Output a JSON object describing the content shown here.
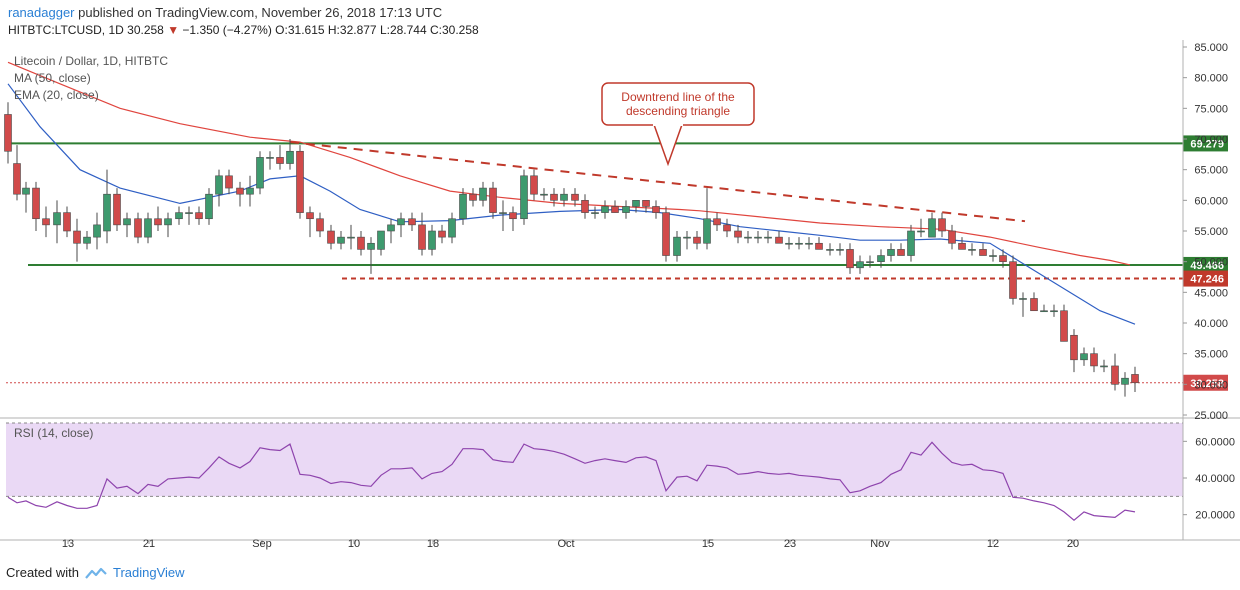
{
  "publish": {
    "author": "ranadagger",
    "rest": " published on TradingView.com, November 26, 2018 17:13 UTC"
  },
  "ohlc": {
    "symbol": "HITBTC:LTCUSD, 1D",
    "last": "30.258",
    "arrow": "▼",
    "change": "−1.350 (−4.27%)",
    "o": "O:31.615",
    "h": "H:32.877",
    "l": "L:28.744",
    "c": "C:30.258"
  },
  "legend": {
    "title": "Litecoin / Dollar, 1D, HITBTC",
    "ma": "MA (50, close)",
    "ema": "EMA (20, close)",
    "rsi": "RSI (14, close)"
  },
  "annotation": "Downtrend line of the descending triangle",
  "footer": {
    "created_with": "Created with",
    "brand": "TradingView"
  },
  "colors": {
    "up": "#3e9a6e",
    "down": "#d14a4a",
    "ma": "#e0453e",
    "ema": "#2f5fc4",
    "support": "#2e7d32",
    "rsi": "#8e44ad",
    "rsi_band": "#ead9f5"
  },
  "chart_data": [
    {
      "type": "candlestick",
      "title": "Litecoin / Dollar, 1D, HITBTC",
      "x_ticks": [
        "13",
        "21",
        "Sep",
        "10",
        "18",
        "Oct",
        "15",
        "23",
        "Nov",
        "12",
        "20"
      ],
      "y_ticks": [
        "85.000",
        "80.000",
        "75.000",
        "70.000",
        "65.000",
        "60.000",
        "55.000",
        "50.000",
        "45.000",
        "40.000",
        "35.000",
        "30.000",
        "25.000"
      ],
      "ylim": [
        25,
        85
      ],
      "candles": [
        [
          8,
          74,
          76,
          66,
          68
        ],
        [
          17,
          66,
          69,
          60,
          61
        ],
        [
          26,
          61,
          63,
          58,
          62
        ],
        [
          36,
          62,
          63,
          55,
          57
        ],
        [
          46,
          57,
          59,
          54,
          56
        ],
        [
          57,
          56,
          60,
          53,
          58
        ],
        [
          67,
          58,
          59,
          54,
          55
        ],
        [
          77,
          55,
          57,
          50,
          53
        ],
        [
          87,
          53,
          55,
          52,
          54
        ],
        [
          97,
          54,
          58,
          52,
          56
        ],
        [
          107,
          55,
          65,
          53,
          61
        ],
        [
          117,
          61,
          62,
          55,
          56
        ],
        [
          127,
          56,
          58,
          54,
          57
        ],
        [
          138,
          57,
          58,
          53,
          54
        ],
        [
          148,
          54,
          58,
          53,
          57
        ],
        [
          158,
          57,
          59,
          55,
          56
        ],
        [
          168,
          56,
          58,
          54,
          57
        ],
        [
          179,
          57,
          59,
          56,
          58
        ],
        [
          189,
          58,
          59,
          56,
          58
        ],
        [
          199,
          58,
          59,
          56,
          57
        ],
        [
          209,
          57,
          62,
          56,
          61
        ],
        [
          219,
          61,
          65,
          59,
          64
        ],
        [
          229,
          64,
          65,
          61,
          62
        ],
        [
          240,
          62,
          63,
          59,
          61
        ],
        [
          250,
          61,
          64,
          59,
          62
        ],
        [
          260,
          62,
          68,
          61,
          67
        ],
        [
          270,
          67,
          68,
          65,
          67
        ],
        [
          280,
          67,
          69,
          65,
          66
        ],
        [
          290,
          66,
          70,
          65,
          68
        ],
        [
          300,
          68,
          69,
          57,
          58
        ],
        [
          310,
          58,
          59,
          54,
          57
        ],
        [
          320,
          57,
          58,
          54,
          55
        ],
        [
          331,
          55,
          56,
          52,
          53
        ],
        [
          341,
          53,
          55,
          52,
          54
        ],
        [
          351,
          54,
          56,
          52,
          54
        ],
        [
          361,
          54,
          55,
          51,
          52
        ],
        [
          371,
          52,
          54,
          48,
          53
        ],
        [
          381,
          52,
          55,
          51,
          55
        ],
        [
          391,
          55,
          57,
          53,
          56
        ],
        [
          401,
          56,
          58,
          54,
          57
        ],
        [
          412,
          57,
          58,
          55,
          56
        ],
        [
          422,
          56,
          58,
          51,
          52
        ],
        [
          432,
          52,
          56,
          51,
          55
        ],
        [
          442,
          55,
          56,
          53,
          54
        ],
        [
          452,
          54,
          58,
          53,
          57
        ],
        [
          463,
          57,
          62,
          56,
          61
        ],
        [
          473,
          61,
          62,
          59,
          60
        ],
        [
          483,
          60,
          63,
          59,
          62
        ],
        [
          493,
          62,
          63,
          57,
          58
        ],
        [
          503,
          58,
          60,
          55,
          58
        ],
        [
          513,
          58,
          59,
          55,
          57
        ],
        [
          524,
          57,
          65,
          56,
          64
        ],
        [
          534,
          64,
          65,
          60,
          61
        ],
        [
          544,
          61,
          62,
          60,
          61
        ],
        [
          554,
          61,
          62,
          59,
          60
        ],
        [
          564,
          60,
          62,
          59,
          61
        ],
        [
          575,
          61,
          62,
          59,
          60
        ],
        [
          585,
          60,
          61,
          57,
          58
        ],
        [
          595,
          58,
          59,
          57,
          58
        ],
        [
          605,
          58,
          60,
          57,
          59
        ],
        [
          615,
          59,
          60,
          58,
          58
        ],
        [
          626,
          58,
          60,
          57,
          59
        ],
        [
          636,
          59,
          60,
          58,
          60
        ],
        [
          646,
          60,
          60,
          58,
          59
        ],
        [
          656,
          59,
          60,
          57,
          58
        ],
        [
          666,
          58,
          59,
          50,
          51
        ],
        [
          677,
          51,
          55,
          50,
          54
        ],
        [
          687,
          54,
          55,
          52,
          54
        ],
        [
          697,
          54,
          55,
          52,
          53
        ],
        [
          707,
          53,
          62,
          52,
          57
        ],
        [
          717,
          57,
          58,
          55,
          56
        ],
        [
          727,
          56,
          57,
          54,
          55
        ],
        [
          738,
          55,
          56,
          53,
          54
        ],
        [
          748,
          54,
          55,
          53,
          54
        ],
        [
          758,
          54,
          55,
          53,
          54
        ],
        [
          768,
          54,
          55,
          53,
          54
        ],
        [
          779,
          54,
          55,
          53,
          53
        ],
        [
          789,
          53,
          54,
          52,
          53
        ],
        [
          799,
          53,
          54,
          52,
          53
        ],
        [
          809,
          53,
          54,
          52,
          53
        ],
        [
          819,
          53,
          54,
          52,
          52
        ],
        [
          830,
          52,
          53,
          51,
          52
        ],
        [
          840,
          52,
          53,
          51,
          52
        ],
        [
          850,
          52,
          53,
          48,
          49
        ],
        [
          860,
          49,
          51,
          48,
          50
        ],
        [
          870,
          50,
          51,
          49,
          50
        ],
        [
          881,
          50,
          52,
          49,
          51
        ],
        [
          891,
          51,
          53,
          50,
          52
        ],
        [
          901,
          52,
          53,
          51,
          51
        ],
        [
          911,
          51,
          56,
          50,
          55
        ],
        [
          921,
          55,
          57,
          54,
          55
        ],
        [
          932,
          54,
          58,
          54,
          57
        ],
        [
          942,
          57,
          58,
          54,
          55
        ],
        [
          952,
          55,
          56,
          52,
          53
        ],
        [
          962,
          53,
          54,
          52,
          52
        ],
        [
          972,
          52,
          53,
          51,
          52
        ],
        [
          983,
          52,
          53,
          51,
          51
        ],
        [
          993,
          51,
          52,
          50,
          51
        ],
        [
          1003,
          51,
          52,
          49,
          50
        ],
        [
          1013,
          50,
          51,
          43,
          44
        ],
        [
          1023,
          44,
          45,
          41,
          44
        ],
        [
          1034,
          44,
          45,
          42,
          42
        ],
        [
          1044,
          42,
          43,
          42,
          42
        ],
        [
          1054,
          42,
          43,
          41,
          42
        ],
        [
          1064,
          42,
          43,
          37,
          37
        ],
        [
          1074,
          38,
          39,
          32,
          34
        ],
        [
          1084,
          34,
          36,
          33,
          35
        ],
        [
          1094,
          35,
          36,
          32,
          33
        ],
        [
          1104,
          33,
          34,
          32,
          33
        ],
        [
          1115,
          33,
          35,
          29,
          30
        ],
        [
          1125,
          30,
          32,
          28,
          31
        ],
        [
          1135,
          31.615,
          32.877,
          28.744,
          30.258
        ]
      ],
      "ma_50": [
        [
          8,
          82.5
        ],
        [
          60,
          79
        ],
        [
          120,
          75
        ],
        [
          180,
          72.5
        ],
        [
          250,
          70.3
        ],
        [
          300,
          69.5
        ],
        [
          350,
          67
        ],
        [
          400,
          64
        ],
        [
          450,
          61.5
        ],
        [
          500,
          60.5
        ],
        [
          560,
          59.5
        ],
        [
          620,
          59
        ],
        [
          680,
          58.5
        ],
        [
          700,
          58.3
        ],
        [
          760,
          57.3
        ],
        [
          820,
          56.3
        ],
        [
          880,
          55.7
        ],
        [
          940,
          55.3
        ],
        [
          990,
          54
        ],
        [
          1040,
          52.3
        ],
        [
          1080,
          51
        ],
        [
          1110,
          50.2
        ],
        [
          1130,
          49.466
        ]
      ],
      "ema_20": [
        [
          8,
          79
        ],
        [
          40,
          72
        ],
        [
          80,
          65
        ],
        [
          120,
          62
        ],
        [
          180,
          59.5
        ],
        [
          240,
          61.5
        ],
        [
          270,
          63.5
        ],
        [
          300,
          64
        ],
        [
          330,
          61.5
        ],
        [
          360,
          58.5
        ],
        [
          400,
          56.5
        ],
        [
          450,
          56.7
        ],
        [
          500,
          57.6
        ],
        [
          560,
          58.2
        ],
        [
          620,
          58.5
        ],
        [
          660,
          58
        ],
        [
          700,
          57
        ],
        [
          740,
          55.7
        ],
        [
          780,
          55
        ],
        [
          820,
          54.3
        ],
        [
          860,
          53.5
        ],
        [
          900,
          53.5
        ],
        [
          940,
          53.7
        ],
        [
          990,
          53
        ],
        [
          1020,
          50
        ],
        [
          1060,
          46
        ],
        [
          1100,
          42
        ],
        [
          1135,
          39.8
        ]
      ],
      "support_lines": [
        69.279,
        49.466
      ],
      "dashed_levels": [
        47.246
      ],
      "trendline": [
        [
          290,
          69.5
        ],
        [
          1025,
          56.6
        ]
      ],
      "last_price": 30.258,
      "price_labels": [
        "69.279",
        "49.466",
        "47.246",
        "30.258"
      ],
      "annotation": "Downtrend line of the descending triangle"
    },
    {
      "type": "line",
      "title": "RSI (14, close)",
      "y_ticks": [
        "60.0000",
        "40.0000",
        "20.0000"
      ],
      "ylim": [
        10,
        70
      ],
      "band": [
        30,
        70
      ],
      "x": [
        8,
        17,
        26,
        36,
        46,
        57,
        67,
        77,
        87,
        97,
        107,
        117,
        127,
        138,
        148,
        158,
        168,
        179,
        189,
        199,
        209,
        219,
        229,
        240,
        250,
        260,
        270,
        280,
        290,
        300,
        310,
        320,
        331,
        341,
        351,
        361,
        371,
        381,
        391,
        401,
        412,
        422,
        432,
        442,
        452,
        463,
        473,
        483,
        493,
        503,
        513,
        524,
        534,
        544,
        554,
        564,
        575,
        585,
        595,
        605,
        615,
        626,
        636,
        646,
        656,
        666,
        677,
        687,
        697,
        707,
        717,
        727,
        738,
        748,
        758,
        768,
        779,
        789,
        799,
        809,
        819,
        830,
        840,
        850,
        860,
        870,
        881,
        891,
        901,
        911,
        921,
        932,
        942,
        952,
        962,
        972,
        983,
        993,
        1003,
        1013,
        1023,
        1034,
        1044,
        1054,
        1064,
        1074,
        1084,
        1094,
        1104,
        1115,
        1125,
        1135
      ],
      "values": [
        29.5,
        26.5,
        27.5,
        25,
        24,
        27,
        25,
        23.5,
        23.5,
        25,
        39.5,
        34.5,
        35.5,
        31.5,
        36.5,
        35.5,
        39.5,
        40,
        40.5,
        40,
        45.5,
        51.5,
        48,
        45.5,
        49,
        56.5,
        55.5,
        55,
        58.5,
        42,
        41.5,
        40,
        37,
        38,
        37.5,
        36,
        35.5,
        41.5,
        45,
        45,
        45.5,
        39.5,
        42.5,
        43.5,
        47.5,
        56,
        56,
        55.5,
        50,
        49,
        48.5,
        58.5,
        56,
        55.5,
        54.5,
        53,
        50.5,
        48,
        49.5,
        50.5,
        49.5,
        48.5,
        51,
        51.5,
        49.5,
        33,
        40.5,
        41,
        38.5,
        47,
        46.5,
        45.5,
        42,
        42.5,
        43.5,
        42.5,
        42,
        42.5,
        41.5,
        41,
        40.5,
        39.5,
        39,
        32,
        33,
        35.5,
        37.5,
        42,
        44.5,
        54,
        52.5,
        59.5,
        53.5,
        48.5,
        47,
        47.5,
        44.5,
        44,
        42.5,
        29.5,
        29,
        27.5,
        26.5,
        25,
        21.5,
        17,
        21.5,
        19.5,
        19,
        18.5,
        22.5,
        21.5
      ]
    }
  ]
}
